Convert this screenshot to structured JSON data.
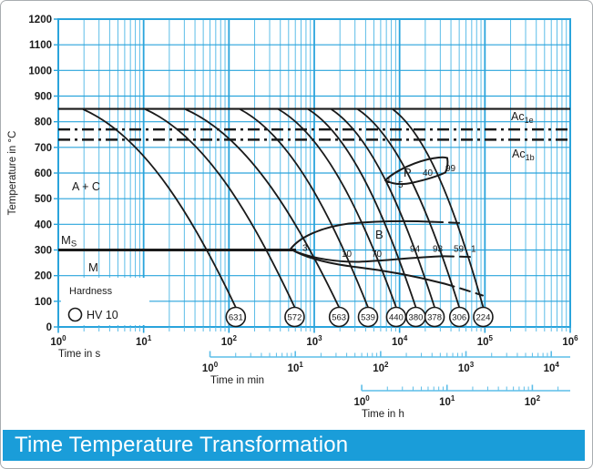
{
  "title_bar": {
    "text": "Time Temperature Transformation",
    "bg": "#1a9dd9",
    "fg": "#ffffff"
  },
  "chart_data": {
    "type": "line",
    "title": "Time Temperature Transformation",
    "description": "Continuous cooling transformation diagram: cooling curves from 850 °C with resulting HV 10 hardness values, pearlite (P) and bainite (B) transformation regions",
    "y_axis": {
      "label": "Temperature in °C",
      "min": 0,
      "max": 1200,
      "tick_step": 100,
      "ticks": [
        1200,
        1100,
        1000,
        900,
        800,
        700,
        600,
        500,
        400,
        300,
        200,
        100,
        0
      ]
    },
    "x_axes": [
      {
        "id": "s",
        "label": "Time in s",
        "scale": "log",
        "base": "10",
        "exponents": [
          0,
          1,
          2,
          3,
          4,
          5,
          6
        ],
        "offset_decades": 0
      },
      {
        "id": "min",
        "label": "Time in min",
        "scale": "log",
        "base": "10",
        "exponents": [
          0,
          1,
          2,
          3,
          4
        ],
        "offset_decades": 1.778
      },
      {
        "id": "h",
        "label": "Time in h",
        "scale": "log",
        "base": "10",
        "exponents": [
          0,
          1,
          2
        ],
        "offset_decades": 3.556
      }
    ],
    "reference_lines": [
      {
        "name": "austenitizing-temperature",
        "temp_c": 850,
        "style": "solid"
      },
      {
        "name": "Ac1e",
        "temp_c": 770,
        "style": "dash-dot",
        "label_base": "Ac",
        "label_sub": "1e"
      },
      {
        "name": "Ac1b",
        "temp_c": 730,
        "style": "dash-dot",
        "label_base": "Ac",
        "label_sub": "1b"
      },
      {
        "name": "Ms",
        "temp_c": 300,
        "style": "solid-thick",
        "label_base": "M",
        "label_sub": "S"
      }
    ],
    "phase_labels": {
      "austenite_carbide": "A + C",
      "martensite": "M",
      "pearlite": "P",
      "bainite": "B"
    },
    "pearlite_percent_labels": [
      "1",
      "5",
      "40",
      "99"
    ],
    "bainite_percent_labels": [
      "3",
      "10",
      "70",
      "94",
      "93",
      "59",
      "1"
    ],
    "cooling_curves": [
      {
        "hardness_hv": "631",
        "start_log_s": 0.29,
        "end_log_s": 2.08
      },
      {
        "hardness_hv": "572",
        "start_log_s": 1.02,
        "end_log_s": 2.77
      },
      {
        "hardness_hv": "563",
        "start_log_s": 1.49,
        "end_log_s": 3.29
      },
      {
        "hardness_hv": "539",
        "start_log_s": 2.13,
        "end_log_s": 3.63
      },
      {
        "hardness_hv": "440",
        "start_log_s": 2.58,
        "end_log_s": 3.96
      },
      {
        "hardness_hv": "380",
        "start_log_s": 2.93,
        "end_log_s": 4.19
      },
      {
        "hardness_hv": "378",
        "start_log_s": 3.2,
        "end_log_s": 4.41
      },
      {
        "hardness_hv": "306",
        "start_log_s": 3.51,
        "end_log_s": 4.7
      },
      {
        "hardness_hv": "224",
        "start_log_s": 3.92,
        "end_log_s": 4.98
      }
    ],
    "legend": {
      "title": "Hardness",
      "symbol": "circle",
      "symbol_label": "HV 10"
    },
    "colors": {
      "grid_minor": "#5cbde8",
      "grid_major": "#2aa4dc",
      "line_black": "#1a1a1a",
      "plot_bg": "#ffffff"
    }
  }
}
